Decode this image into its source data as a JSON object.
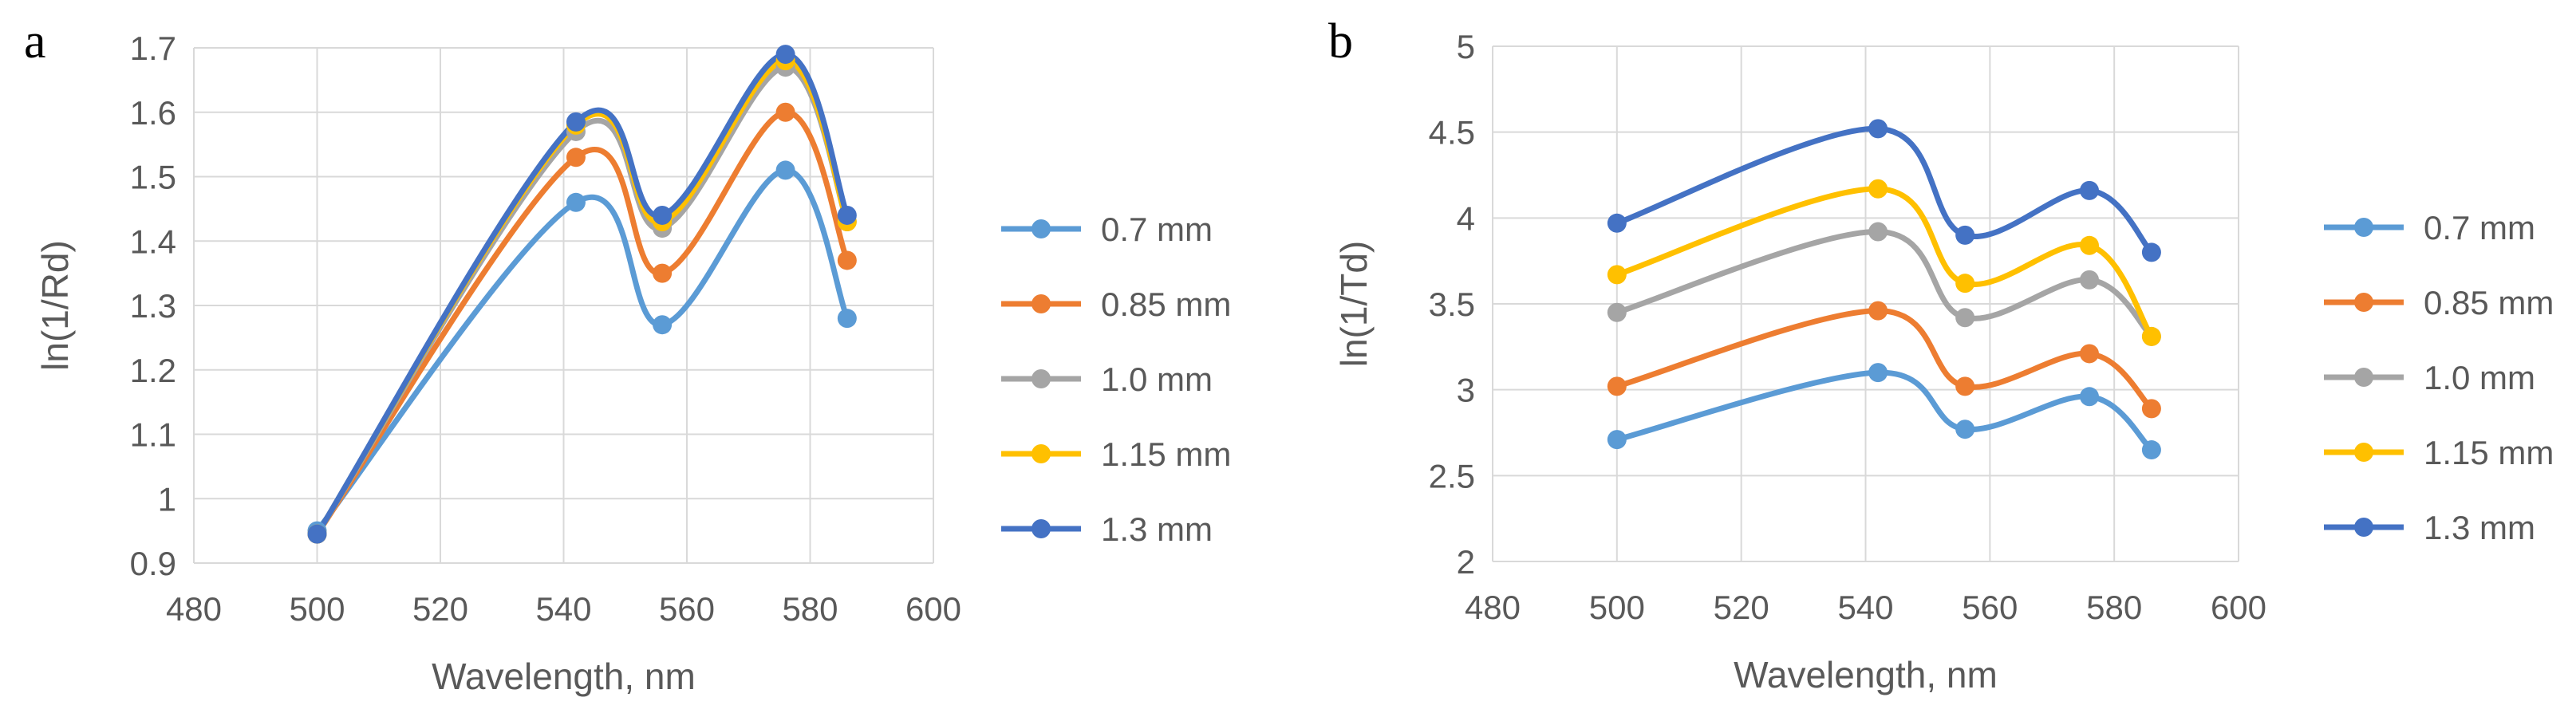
{
  "chart_data": [
    {
      "type": "line",
      "panel_label": "a",
      "title": "",
      "xlabel": "Wavelength, nm",
      "ylabel": "ln(1/Rd)",
      "xlim": [
        480,
        600
      ],
      "ylim": [
        0.9,
        1.7
      ],
      "x_ticks": [
        "480",
        "500",
        "520",
        "540",
        "560",
        "580",
        "600"
      ],
      "y_ticks": [
        "0.9",
        "1",
        "1.1",
        "1.2",
        "1.3",
        "1.4",
        "1.5",
        "1.6",
        "1.7"
      ],
      "grid": true,
      "legend_position": "right",
      "x": [
        500,
        542,
        556,
        576,
        586
      ],
      "series": [
        {
          "name": "0.7 mm",
          "color": "#5b9bd5",
          "values": [
            0.95,
            1.46,
            1.27,
            1.51,
            1.28
          ]
        },
        {
          "name": "0.85 mm",
          "color": "#ed7d31",
          "values": [
            0.945,
            1.53,
            1.35,
            1.6,
            1.37
          ]
        },
        {
          "name": "1.0 mm",
          "color": "#a5a5a5",
          "values": [
            0.945,
            1.57,
            1.42,
            1.67,
            1.43
          ]
        },
        {
          "name": "1.15 mm",
          "color": "#ffc000",
          "values": [
            0.945,
            1.58,
            1.43,
            1.68,
            1.43
          ]
        },
        {
          "name": "1.3 mm",
          "color": "#4472c4",
          "values": [
            0.945,
            1.585,
            1.44,
            1.69,
            1.44
          ]
        }
      ]
    },
    {
      "type": "line",
      "panel_label": "b",
      "title": "",
      "xlabel": "Wavelength, nm",
      "ylabel": "ln(1/Td)",
      "xlim": [
        480,
        600
      ],
      "ylim": [
        2,
        5
      ],
      "x_ticks": [
        "480",
        "500",
        "520",
        "540",
        "560",
        "580",
        "600"
      ],
      "y_ticks": [
        "2",
        "2.5",
        "3",
        "3.5",
        "4",
        "4.5",
        "5"
      ],
      "grid": true,
      "legend_position": "right",
      "x": [
        500,
        542,
        556,
        576,
        586
      ],
      "series": [
        {
          "name": "0.7 mm",
          "color": "#5b9bd5",
          "values": [
            2.71,
            3.1,
            2.77,
            2.96,
            2.65
          ]
        },
        {
          "name": "0.85 mm",
          "color": "#ed7d31",
          "values": [
            3.02,
            3.46,
            3.02,
            3.21,
            2.89
          ]
        },
        {
          "name": "1.0 mm",
          "color": "#a5a5a5",
          "values": [
            3.45,
            3.92,
            3.42,
            3.64,
            3.31
          ]
        },
        {
          "name": "1.15 mm",
          "color": "#ffc000",
          "values": [
            3.67,
            4.17,
            3.62,
            3.84,
            3.31
          ]
        },
        {
          "name": "1.3 mm",
          "color": "#4472c4",
          "values": [
            3.97,
            4.52,
            3.9,
            4.16,
            3.8
          ]
        }
      ]
    }
  ]
}
